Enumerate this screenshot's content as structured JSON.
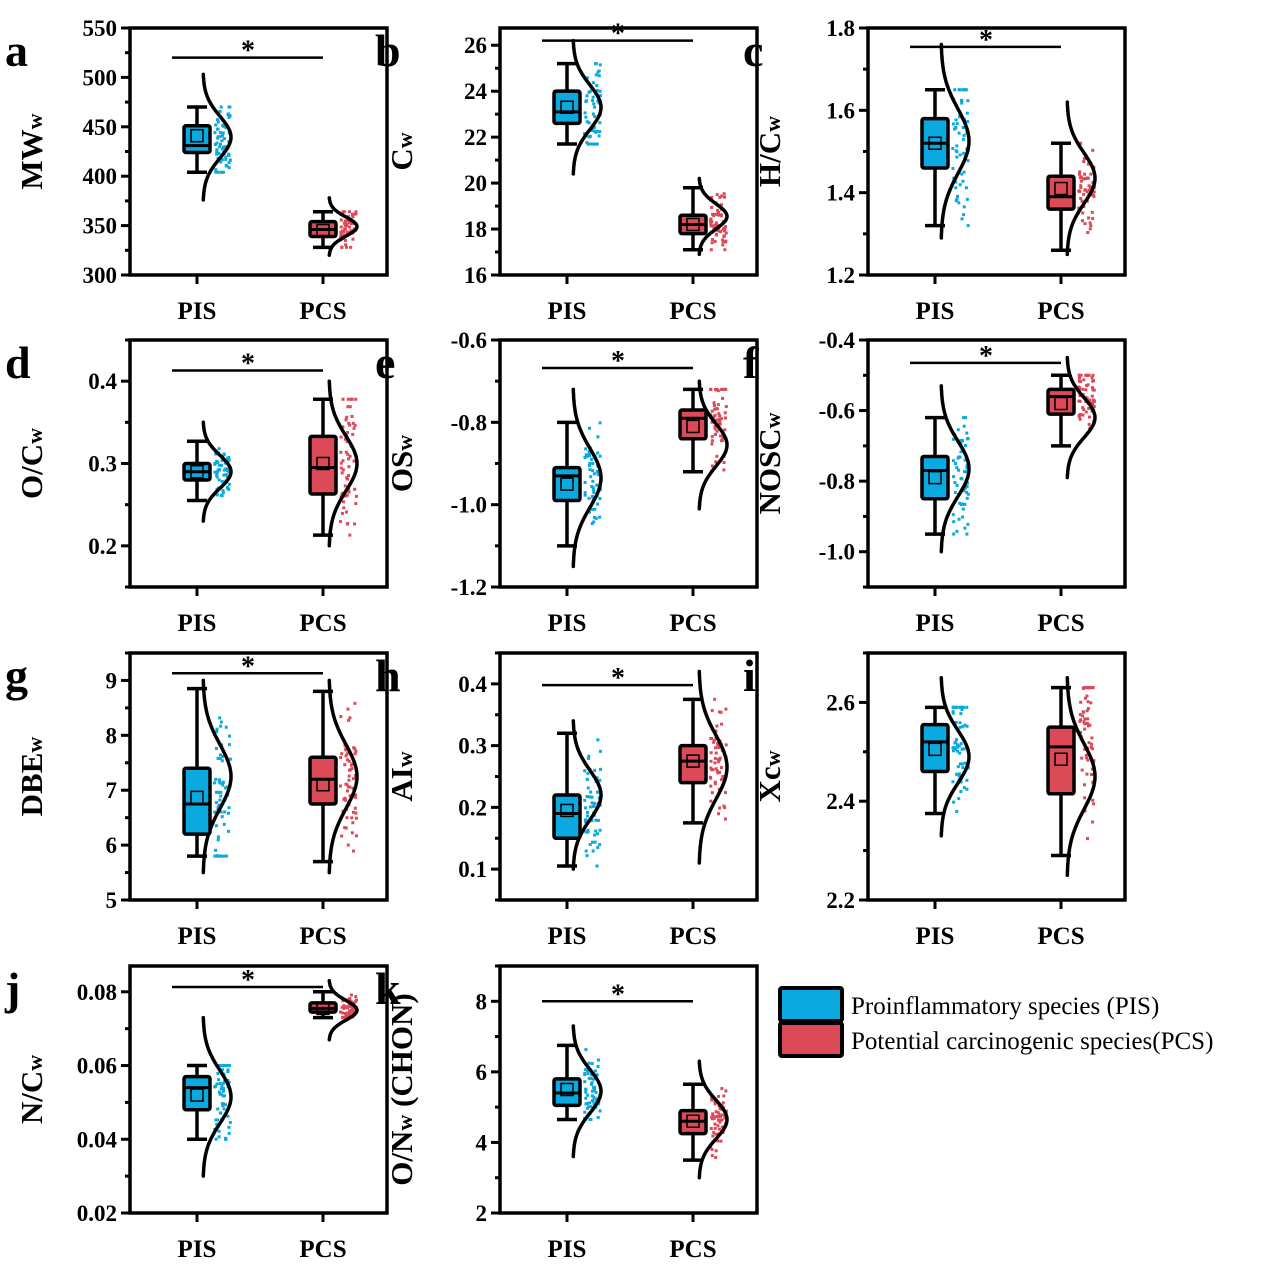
{
  "colors": {
    "PIS": "#0aa9df",
    "PCS": "#dc4a58"
  },
  "legend": [
    {
      "key": "PIS",
      "label": "Proinflammatory species (PIS)"
    },
    {
      "key": "PCS",
      "label": "Potential carcinogenic species(PCS)"
    }
  ],
  "chart_data": [
    {
      "letter": "a",
      "type": "box",
      "ylabel": "MW",
      "ysub": "w",
      "ylim": [
        300,
        550
      ],
      "ticks": [
        "300",
        "350",
        "400",
        "450",
        "500",
        "550"
      ],
      "minor": true,
      "categories": [
        "PIS",
        "PCS"
      ],
      "sig": {
        "label": "*",
        "y": 520
      },
      "series": [
        {
          "name": "PIS",
          "whisker": [
            404,
            470
          ],
          "box": [
            424,
            451
          ],
          "median": 431,
          "mean": 441,
          "dist": [
            376,
            503
          ]
        },
        {
          "name": "PCS",
          "whisker": [
            328,
            364
          ],
          "box": [
            339,
            354
          ],
          "median": 346,
          "mean": 345,
          "dist": [
            320,
            378
          ]
        }
      ]
    },
    {
      "letter": "b",
      "type": "box",
      "ylabel": "C",
      "ysub": "w",
      "ylim": [
        16,
        26.75
      ],
      "ticks": [
        "16",
        "18",
        "20",
        "22",
        "24",
        "26"
      ],
      "minor": true,
      "categories": [
        "PIS",
        "PCS"
      ],
      "sig": {
        "label": "*",
        "y": 26.2
      },
      "series": [
        {
          "name": "PIS",
          "whisker": [
            21.7,
            25.2
          ],
          "box": [
            22.6,
            24.0
          ],
          "median": 23.1,
          "mean": 23.3,
          "dist": [
            20.4,
            26.2
          ]
        },
        {
          "name": "PCS",
          "whisker": [
            17.1,
            19.8
          ],
          "box": [
            17.8,
            18.6
          ],
          "median": 18.2,
          "mean": 18.2,
          "dist": [
            16.9,
            20.2
          ]
        }
      ]
    },
    {
      "letter": "c",
      "type": "box",
      "ylabel": "H/C",
      "ysub": "w",
      "ylim": [
        1.2,
        1.8
      ],
      "ticks": [
        "1.2",
        "1.4",
        "1.6",
        "1.8"
      ],
      "minor": true,
      "categories": [
        "PIS",
        "PCS"
      ],
      "sig": {
        "label": "*",
        "y": 1.754
      },
      "series": [
        {
          "name": "PIS",
          "whisker": [
            1.32,
            1.65
          ],
          "box": [
            1.46,
            1.58
          ],
          "median": 1.52,
          "mean": 1.52,
          "dist": [
            1.29,
            1.76
          ]
        },
        {
          "name": "PCS",
          "whisker": [
            1.26,
            1.52
          ],
          "box": [
            1.36,
            1.44
          ],
          "median": 1.39,
          "mean": 1.41,
          "dist": [
            1.25,
            1.62
          ]
        }
      ]
    },
    {
      "letter": "d",
      "type": "box",
      "ylabel": "O/C",
      "ysub": "w",
      "ylim": [
        0.15,
        0.45
      ],
      "ticks": [
        "0.2",
        "0.3",
        "0.4"
      ],
      "minor": true,
      "categories": [
        "PIS",
        "PCS"
      ],
      "sig": {
        "label": "*",
        "y": 0.413
      },
      "series": [
        {
          "name": "PIS",
          "whisker": [
            0.255,
            0.327
          ],
          "box": [
            0.28,
            0.3
          ],
          "median": 0.29,
          "mean": 0.29,
          "dist": [
            0.23,
            0.35
          ]
        },
        {
          "name": "PCS",
          "whisker": [
            0.213,
            0.378
          ],
          "box": [
            0.263,
            0.333
          ],
          "median": 0.295,
          "mean": 0.3,
          "dist": [
            0.2,
            0.4
          ]
        }
      ]
    },
    {
      "letter": "e",
      "type": "box",
      "ylabel": "OS",
      "ysub": "w",
      "ylim": [
        -1.2,
        -0.6
      ],
      "ticks": [
        "-1.2",
        "-1.0",
        "-0.8",
        "-0.6"
      ],
      "minor": true,
      "categories": [
        "PIS",
        "PCS"
      ],
      "sig": {
        "label": "*",
        "y": -0.668
      },
      "series": [
        {
          "name": "PIS",
          "whisker": [
            -1.1,
            -0.8
          ],
          "box": [
            -0.99,
            -0.91
          ],
          "median": -0.93,
          "mean": -0.95,
          "dist": [
            -1.15,
            -0.72
          ]
        },
        {
          "name": "PCS",
          "whisker": [
            -0.92,
            -0.72
          ],
          "box": [
            -0.84,
            -0.77
          ],
          "median": -0.79,
          "mean": -0.81,
          "dist": [
            -1.01,
            -0.7
          ]
        }
      ]
    },
    {
      "letter": "f",
      "type": "box",
      "ylabel": "NOSC",
      "ysub": "w",
      "ylim": [
        -1.1,
        -0.4
      ],
      "ticks": [
        "-1.0",
        "-0.8",
        "-0.6",
        "-0.4"
      ],
      "minor": true,
      "categories": [
        "PIS",
        "PCS"
      ],
      "sig": {
        "label": "*",
        "y": -0.465
      },
      "series": [
        {
          "name": "PIS",
          "whisker": [
            -0.95,
            -0.62
          ],
          "box": [
            -0.85,
            -0.73
          ],
          "median": -0.77,
          "mean": -0.79,
          "dist": [
            -1.0,
            -0.53
          ]
        },
        {
          "name": "PCS",
          "whisker": [
            -0.7,
            -0.5
          ],
          "box": [
            -0.61,
            -0.54
          ],
          "median": -0.56,
          "mean": -0.58,
          "dist": [
            -0.79,
            -0.45
          ]
        }
      ]
    },
    {
      "letter": "g",
      "type": "box",
      "ylabel": "DBE",
      "ysub": "w",
      "ylim": [
        5,
        9.5
      ],
      "ticks": [
        "5",
        "6",
        "7",
        "8",
        "9"
      ],
      "minor": true,
      "categories": [
        "PIS",
        "PCS"
      ],
      "sig": {
        "label": "*",
        "y": 9.13
      },
      "series": [
        {
          "name": "PIS",
          "whisker": [
            5.8,
            8.85
          ],
          "box": [
            6.2,
            7.4
          ],
          "median": 6.75,
          "mean": 6.87,
          "dist": [
            5.5,
            9.0
          ]
        },
        {
          "name": "PCS",
          "whisker": [
            5.7,
            8.8
          ],
          "box": [
            6.75,
            7.6
          ],
          "median": 7.2,
          "mean": 7.1,
          "dist": [
            5.5,
            9.0
          ]
        }
      ]
    },
    {
      "letter": "h",
      "type": "box",
      "ylabel": "AI",
      "ysub": "w",
      "ylim": [
        0.05,
        0.45
      ],
      "ticks": [
        "0.1",
        "0.2",
        "0.3",
        "0.4"
      ],
      "minor": true,
      "categories": [
        "PIS",
        "PCS"
      ],
      "sig": {
        "label": "*",
        "y": 0.398
      },
      "series": [
        {
          "name": "PIS",
          "whisker": [
            0.105,
            0.32
          ],
          "box": [
            0.15,
            0.22
          ],
          "median": 0.19,
          "mean": 0.195,
          "dist": [
            0.1,
            0.34
          ]
        },
        {
          "name": "PCS",
          "whisker": [
            0.175,
            0.375
          ],
          "box": [
            0.24,
            0.3
          ],
          "median": 0.275,
          "mean": 0.275,
          "dist": [
            0.11,
            0.42
          ]
        }
      ]
    },
    {
      "letter": "i",
      "type": "box",
      "ylabel": "Xc",
      "ysub": "w",
      "ylim": [
        2.2,
        2.7
      ],
      "ticks": [
        "2.2",
        "2.4",
        "2.6"
      ],
      "minor": true,
      "categories": [
        "PIS",
        "PCS"
      ],
      "sig": null,
      "series": [
        {
          "name": "PIS",
          "whisker": [
            2.375,
            2.59
          ],
          "box": [
            2.46,
            2.555
          ],
          "median": 2.52,
          "mean": 2.505,
          "dist": [
            2.33,
            2.65
          ]
        },
        {
          "name": "PCS",
          "whisker": [
            2.29,
            2.63
          ],
          "box": [
            2.415,
            2.55
          ],
          "median": 2.51,
          "mean": 2.485,
          "dist": [
            2.25,
            2.65
          ]
        }
      ]
    },
    {
      "letter": "j",
      "type": "box",
      "ylabel": "N/C",
      "ysub": "w",
      "ylim": [
        0.02,
        0.087
      ],
      "ticks": [
        "0.02",
        "0.04",
        "0.06",
        "0.08"
      ],
      "minor": true,
      "categories": [
        "PIS",
        "PCS"
      ],
      "sig": {
        "label": "*",
        "y": 0.0813
      },
      "series": [
        {
          "name": "PIS",
          "whisker": [
            0.04,
            0.06
          ],
          "box": [
            0.048,
            0.057
          ],
          "median": 0.054,
          "mean": 0.052,
          "dist": [
            0.03,
            0.073
          ]
        },
        {
          "name": "PCS",
          "whisker": [
            0.073,
            0.08
          ],
          "box": [
            0.0745,
            0.077
          ],
          "median": 0.0755,
          "mean": 0.0755,
          "dist": [
            0.067,
            0.083
          ]
        }
      ]
    },
    {
      "letter": "k",
      "type": "box",
      "ylabel": "O/N",
      "ysub": "w",
      "ysuffix": " (CHON)",
      "ylim": [
        2,
        9
      ],
      "ticks": [
        "2",
        "4",
        "6",
        "8"
      ],
      "minor": true,
      "categories": [
        "PIS",
        "PCS"
      ],
      "sig": {
        "label": "*",
        "y": 8.0
      },
      "series": [
        {
          "name": "PIS",
          "whisker": [
            4.65,
            6.75
          ],
          "box": [
            5.05,
            5.8
          ],
          "median": 5.4,
          "mean": 5.5,
          "dist": [
            3.6,
            7.3
          ]
        },
        {
          "name": "PCS",
          "whisker": [
            3.5,
            5.65
          ],
          "box": [
            4.25,
            4.9
          ],
          "median": 4.6,
          "mean": 4.6,
          "dist": [
            3.0,
            6.3
          ]
        }
      ]
    }
  ]
}
